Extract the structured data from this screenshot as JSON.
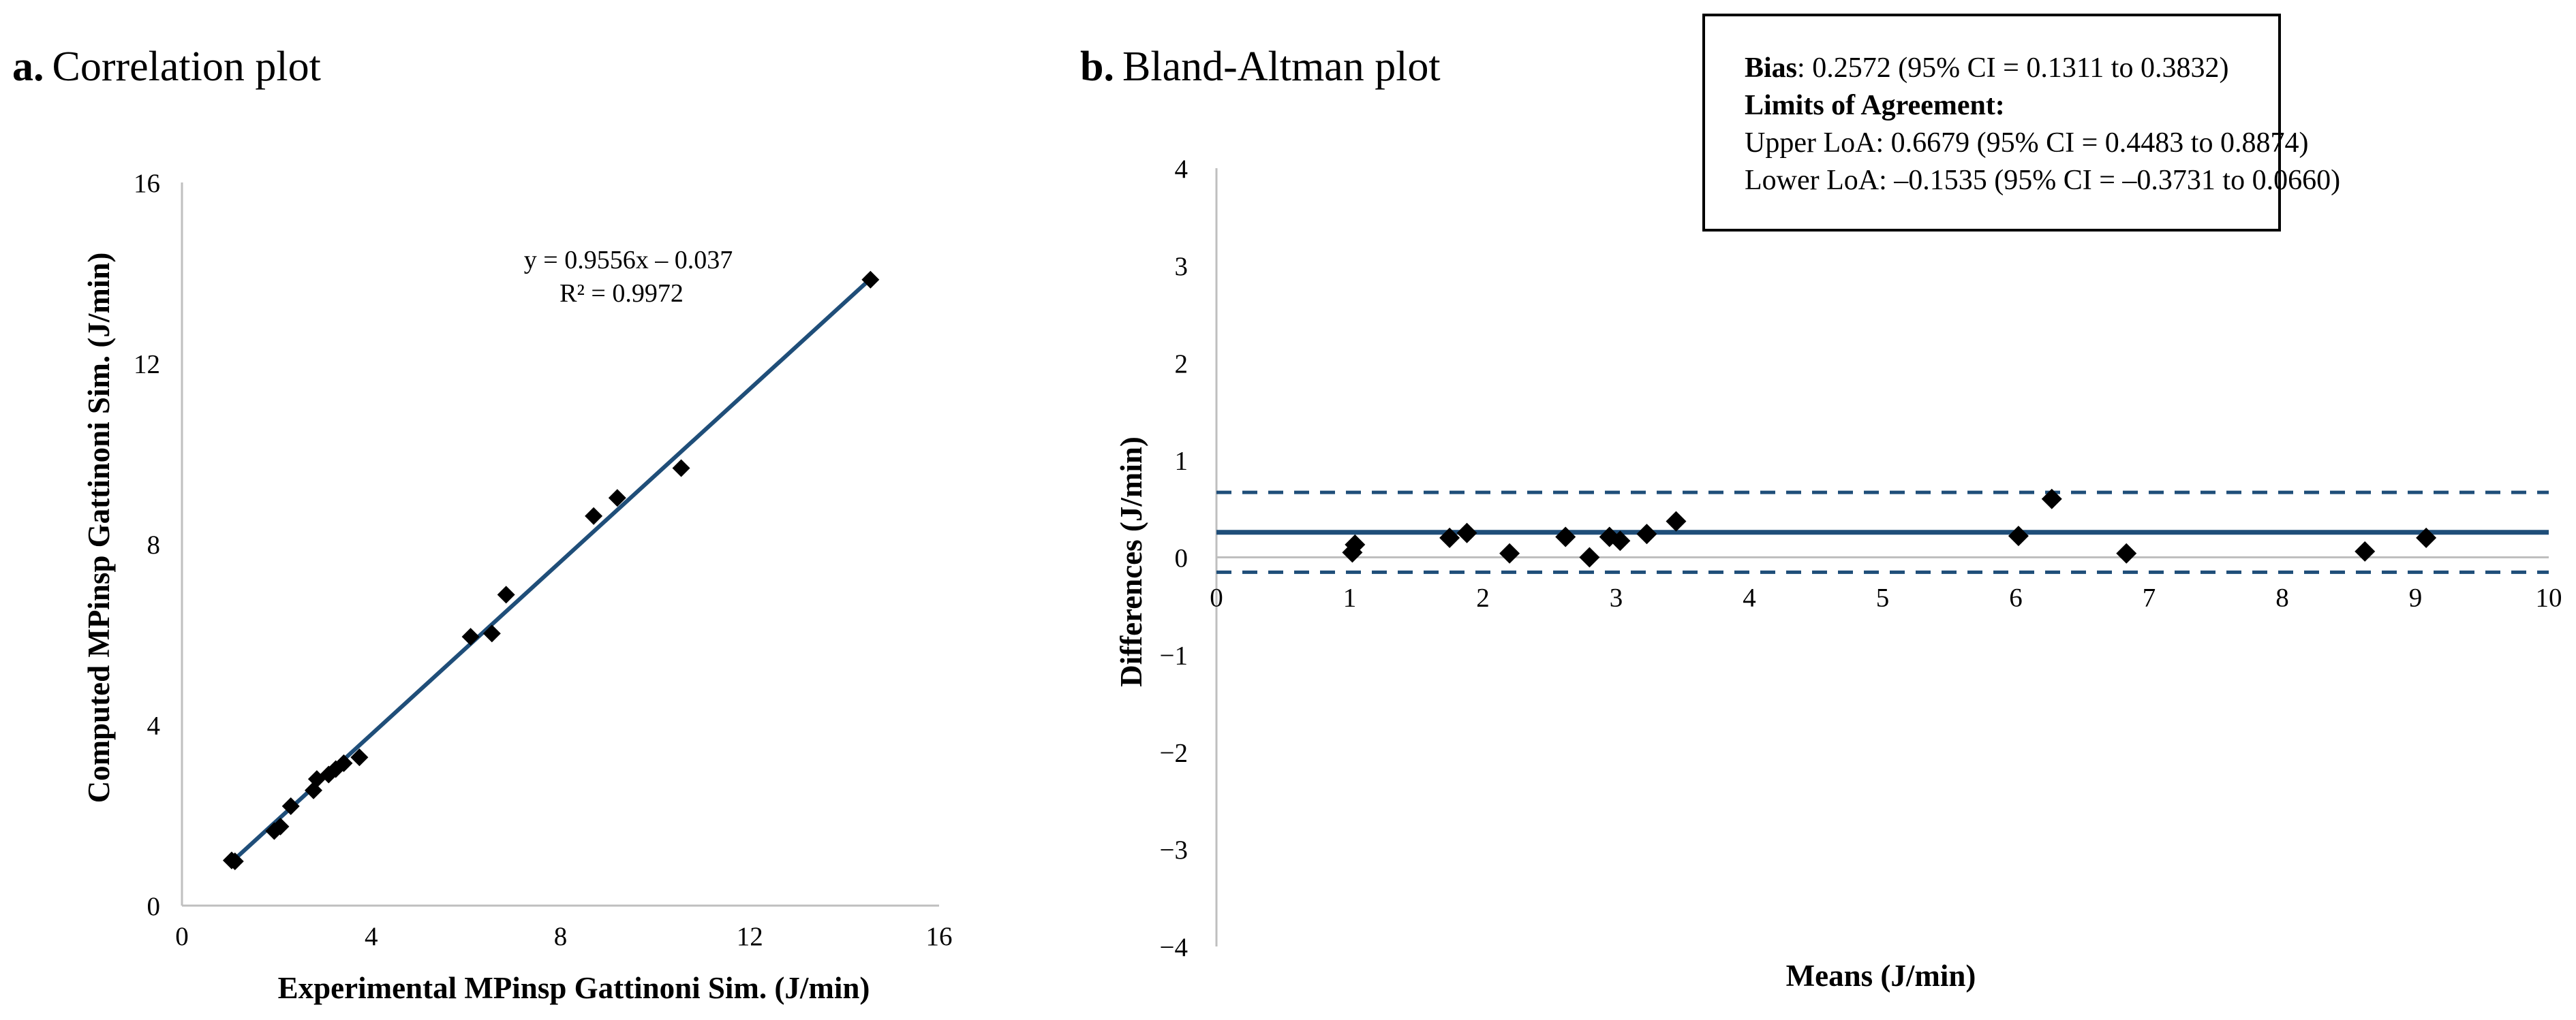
{
  "colors": {
    "line": "#1f4e79",
    "marker": "#000000",
    "axis": "#bfbfbf",
    "box_border": "#000000"
  },
  "chart_data": [
    {
      "type": "scatter",
      "panel_letter": "a.",
      "title": "Correlation plot",
      "xlabel": "Experimental MPinsp Gattinoni Sim. (J/min)",
      "ylabel": "Computed MPinsp Gattinoni Sim. (J/min)",
      "xlim": [
        0,
        16
      ],
      "ylim": [
        0,
        16
      ],
      "xticks": [
        "0",
        "4",
        "8",
        "12",
        "16"
      ],
      "yticks": [
        "0",
        "4",
        "8",
        "12",
        "16"
      ],
      "grid": false,
      "points": [
        [
          1.05,
          1.0
        ],
        [
          1.12,
          0.98
        ],
        [
          1.95,
          1.65
        ],
        [
          2.08,
          1.75
        ],
        [
          2.3,
          2.2
        ],
        [
          2.78,
          2.55
        ],
        [
          2.85,
          2.8
        ],
        [
          3.1,
          2.9
        ],
        [
          3.25,
          3.02
        ],
        [
          3.42,
          3.15
        ],
        [
          3.75,
          3.28
        ],
        [
          6.1,
          5.95
        ],
        [
          6.55,
          6.02
        ],
        [
          6.85,
          6.88
        ],
        [
          8.7,
          8.62
        ],
        [
          9.2,
          9.02
        ],
        [
          10.55,
          9.68
        ],
        [
          14.55,
          13.85
        ]
      ],
      "trendline": {
        "slope": 0.9556,
        "intercept": -0.037,
        "x_range": [
          1.05,
          14.55
        ]
      },
      "equation": "y = 0.9556x – 0.037",
      "r_squared": "R² = 0.9972"
    },
    {
      "type": "scatter",
      "panel_letter": "b.",
      "title": "Bland-Altman plot",
      "xlabel": "Means (J/min)",
      "ylabel": "Differences (J/min)",
      "xlim": [
        0,
        10
      ],
      "ylim": [
        -4,
        4
      ],
      "xticks": [
        "0",
        "1",
        "2",
        "3",
        "4",
        "5",
        "6",
        "7",
        "8",
        "9",
        "10"
      ],
      "yticks": [
        "4",
        "3",
        "2",
        "1",
        "0",
        "−1",
        "−2",
        "−3",
        "−4"
      ],
      "grid": false,
      "points": [
        [
          1.02,
          0.05
        ],
        [
          1.04,
          0.13
        ],
        [
          1.75,
          0.2
        ],
        [
          1.88,
          0.25
        ],
        [
          2.2,
          0.04
        ],
        [
          2.62,
          0.21
        ],
        [
          2.8,
          0.0
        ],
        [
          2.95,
          0.21
        ],
        [
          3.03,
          0.17
        ],
        [
          3.23,
          0.24
        ],
        [
          3.45,
          0.37
        ],
        [
          6.02,
          0.22
        ],
        [
          6.27,
          0.6
        ],
        [
          6.83,
          0.04
        ],
        [
          8.62,
          0.06
        ],
        [
          9.08,
          0.2
        ]
      ],
      "bias": 0.2572,
      "upper_loa": 0.6679,
      "lower_loa": -0.1535
    }
  ],
  "stats_box": {
    "bias_label": "Bias",
    "bias_text": ":  0.2572  (95% CI =  0.1311 to  0.3832)",
    "loa_heading": "Limits of Agreement:",
    "upper_text": "Upper LoA:   0.6679  (95% CI = 0.4483 to 0.8874)",
    "lower_text": "Lower LoA: –0.1535  (95% CI = –0.3731 to 0.0660)"
  }
}
